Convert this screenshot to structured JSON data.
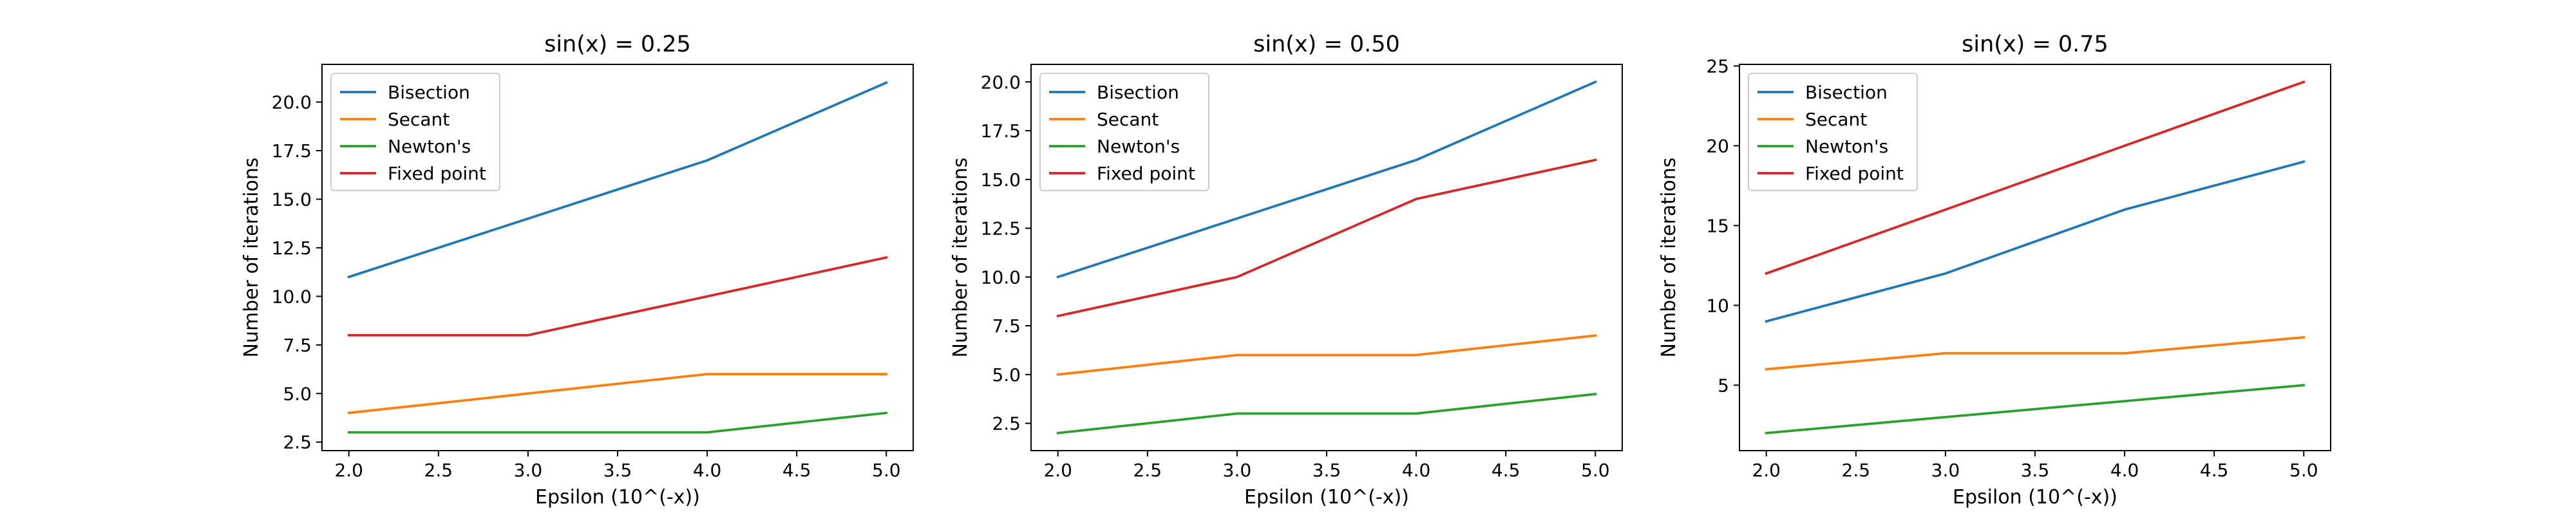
{
  "figure": {
    "background": "#ffffff"
  },
  "series_colors": {
    "Bisection": "#1f77b4",
    "Secant": "#ff7f0e",
    "Newton's": "#2ca02c",
    "Fixed point": "#d62728"
  },
  "chart_data": [
    {
      "type": "line",
      "title": "sin(x) = 0.25",
      "xlabel": "Epsilon (10^(-x))",
      "ylabel": "Number of iterations",
      "x": [
        2,
        3,
        4,
        5
      ],
      "xlim": [
        1.85,
        5.15
      ],
      "ylim": [
        2.06,
        21.94
      ],
      "xticks": [
        2.0,
        2.5,
        3.0,
        3.5,
        4.0,
        4.5,
        5.0
      ],
      "xtick_labels": [
        "2.0",
        "2.5",
        "3.0",
        "3.5",
        "4.0",
        "4.5",
        "5.0"
      ],
      "yticks": [
        2.5,
        5.0,
        7.5,
        10.0,
        12.5,
        15.0,
        17.5,
        20.0
      ],
      "ytick_labels": [
        "2.5",
        "5.0",
        "7.5",
        "10.0",
        "12.5",
        "15.0",
        "17.5",
        "20.0"
      ],
      "grid": false,
      "legend": "upper-left",
      "series": [
        {
          "name": "Bisection",
          "values": [
            11,
            14,
            17,
            21
          ]
        },
        {
          "name": "Secant",
          "values": [
            4,
            5,
            6,
            6
          ]
        },
        {
          "name": "Newton's",
          "values": [
            3,
            3,
            3,
            4
          ]
        },
        {
          "name": "Fixed point",
          "values": [
            8,
            8,
            10,
            12
          ]
        }
      ]
    },
    {
      "type": "line",
      "title": "sin(x) = 0.50",
      "xlabel": "Epsilon (10^(-x))",
      "ylabel": "Number of iterations",
      "x": [
        2,
        3,
        4,
        5
      ],
      "xlim": [
        1.85,
        5.15
      ],
      "ylim": [
        1.1,
        20.9
      ],
      "xticks": [
        2.0,
        2.5,
        3.0,
        3.5,
        4.0,
        4.5,
        5.0
      ],
      "xtick_labels": [
        "2.0",
        "2.5",
        "3.0",
        "3.5",
        "4.0",
        "4.5",
        "5.0"
      ],
      "yticks": [
        2.5,
        5.0,
        7.5,
        10.0,
        12.5,
        15.0,
        17.5,
        20.0
      ],
      "ytick_labels": [
        "2.5",
        "5.0",
        "7.5",
        "10.0",
        "12.5",
        "15.0",
        "17.5",
        "20.0"
      ],
      "grid": false,
      "legend": "upper-left",
      "series": [
        {
          "name": "Bisection",
          "values": [
            10,
            13,
            16,
            20
          ]
        },
        {
          "name": "Secant",
          "values": [
            5,
            6,
            6,
            7
          ]
        },
        {
          "name": "Newton's",
          "values": [
            2,
            3,
            3,
            4
          ]
        },
        {
          "name": "Fixed point",
          "values": [
            8,
            10,
            14,
            16
          ]
        }
      ]
    },
    {
      "type": "line",
      "title": "sin(x) = 0.75",
      "xlabel": "Epsilon (10^(-x))",
      "ylabel": "Number of iterations",
      "x": [
        2,
        3,
        4,
        5
      ],
      "xlim": [
        1.85,
        5.15
      ],
      "ylim": [
        0.9,
        25.1
      ],
      "xticks": [
        2.0,
        2.5,
        3.0,
        3.5,
        4.0,
        4.5,
        5.0
      ],
      "xtick_labels": [
        "2.0",
        "2.5",
        "3.0",
        "3.5",
        "4.0",
        "4.5",
        "5.0"
      ],
      "yticks": [
        5,
        10,
        15,
        20,
        25
      ],
      "ytick_labels": [
        "5",
        "10",
        "15",
        "20",
        "25"
      ],
      "grid": false,
      "legend": "upper-left",
      "series": [
        {
          "name": "Bisection",
          "values": [
            9,
            12,
            16,
            19
          ]
        },
        {
          "name": "Secant",
          "values": [
            6,
            7,
            7,
            8
          ]
        },
        {
          "name": "Newton's",
          "values": [
            2,
            3,
            4,
            5
          ]
        },
        {
          "name": "Fixed point",
          "values": [
            12,
            16,
            20,
            24
          ]
        }
      ]
    }
  ]
}
